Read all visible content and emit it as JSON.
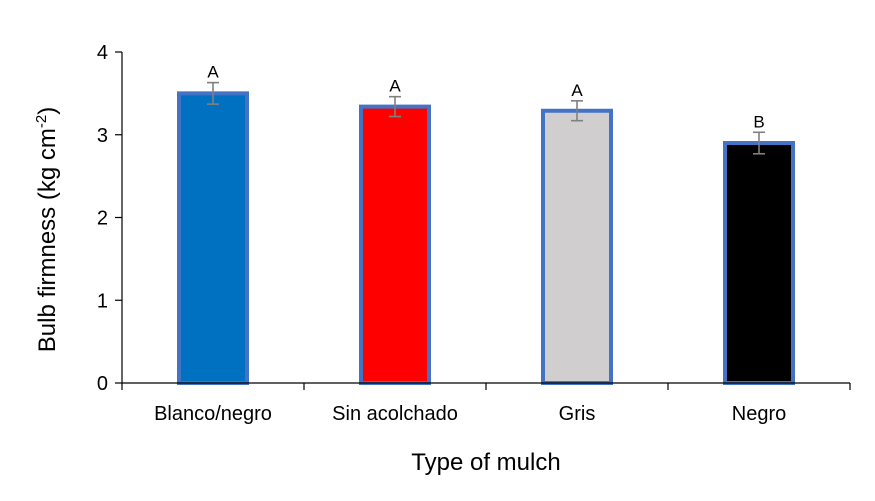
{
  "chart_data": {
    "type": "bar",
    "title": "",
    "categories": [
      "Blanco/negro",
      "Sin acolchado",
      "Gris",
      "Negro"
    ],
    "values": [
      3.5,
      3.34,
      3.29,
      2.9
    ],
    "errors": [
      0.13,
      0.12,
      0.12,
      0.13
    ],
    "significance": [
      "A",
      "A",
      "A",
      "B"
    ],
    "colors": [
      "#0070C0",
      "#FF0000",
      "#D0CECE",
      "#000000"
    ],
    "edge_color": "#4472C4",
    "xlabel": "Type of mulch",
    "ylabel_main": "Bulb firmness (kg cm",
    "ylabel_sup": "-2",
    "ylabel_end": ")",
    "ylim": [
      0,
      4
    ],
    "yticks": [
      0,
      1,
      2,
      3,
      4
    ],
    "grid": false
  }
}
